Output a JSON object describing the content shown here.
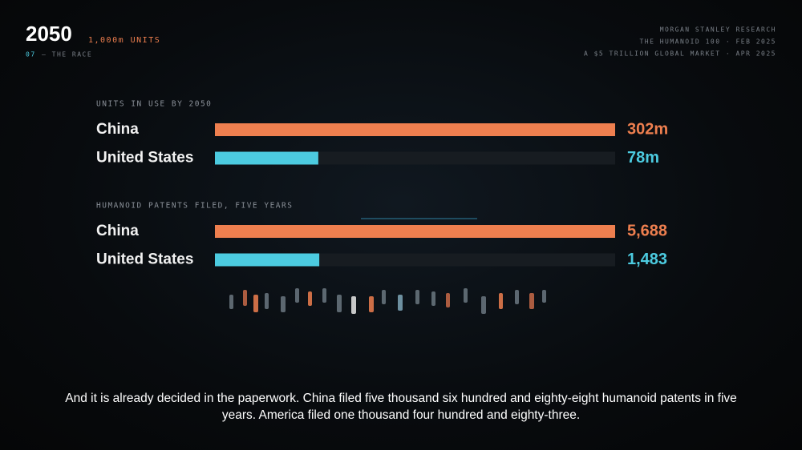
{
  "header": {
    "title": "2050",
    "subtitle": "1,000m UNITS",
    "section_number": "07",
    "section_name": "— THE RACE",
    "source_lines": [
      "MORGAN STANLEY RESEARCH",
      "THE HUMANOID 100 · FEB 2025",
      "A $5 TRILLION GLOBAL MARKET · APR 2025"
    ]
  },
  "chart_data": [
    {
      "type": "bar",
      "orientation": "horizontal",
      "title": "UNITS IN USE BY 2050",
      "categories": [
        "China",
        "United States"
      ],
      "values": [
        302,
        78
      ],
      "value_labels": [
        "302m",
        "78m"
      ],
      "colors": [
        "#ee7f4f",
        "#4ccbe0"
      ],
      "xlim": [
        0,
        302
      ]
    },
    {
      "type": "bar",
      "orientation": "horizontal",
      "title": "HUMANOID PATENTS FILED, FIVE YEARS",
      "categories": [
        "China",
        "United States"
      ],
      "values": [
        5688,
        1483
      ],
      "value_labels": [
        "5,688",
        "1,483"
      ],
      "colors": [
        "#ee7f4f",
        "#4ccbe0"
      ],
      "xlim": [
        0,
        5688
      ]
    }
  ],
  "caption": "And it is already decided in the paperwork. China filed five thousand six hundred and eighty-eight humanoid patents in five years. America filed one thousand four hundred and eighty-three."
}
